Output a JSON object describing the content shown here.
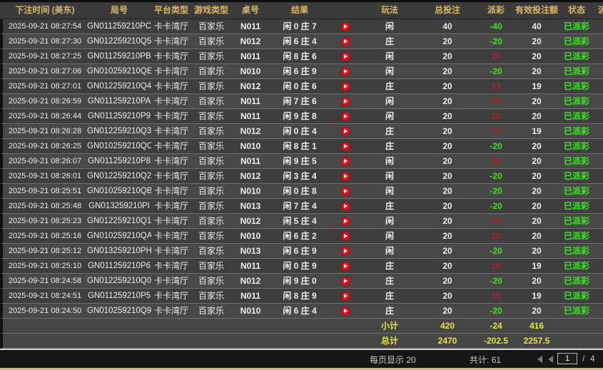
{
  "colors": {
    "gold": "#d9b869",
    "win": "#a5242e",
    "loss": "#46df28",
    "paid": "#3ee426",
    "yellow": "#e5e43c",
    "playred": "#e01318"
  },
  "table": {
    "headers": [
      "下注时间 (美东)",
      "局号",
      "平台类型",
      "游戏类型",
      "桌号",
      "结果",
      "",
      "玩法",
      "总投注",
      "派彩",
      "有效投注额",
      "状态",
      "派"
    ],
    "rows": [
      {
        "time": "2025-09-21 08:27:54",
        "round": "GN011259210PC",
        "platform": "卡卡湾厅",
        "game": "百家乐",
        "table": "N011",
        "result": "闲 0 庄 7",
        "bet": "闲",
        "total": "40",
        "payout": "-40",
        "valid": "40",
        "status": "已派彩"
      },
      {
        "time": "2025-09-21 08:27:30",
        "round": "GN012259210Q5",
        "platform": "卡卡湾厅",
        "game": "百家乐",
        "table": "N012",
        "result": "闲 6 庄 4",
        "bet": "庄",
        "total": "20",
        "payout": "-20",
        "valid": "20",
        "status": "已派彩"
      },
      {
        "time": "2025-09-21 08:27:25",
        "round": "GN011259210PB",
        "platform": "卡卡湾厅",
        "game": "百家乐",
        "table": "N011",
        "result": "闲 8 庄 6",
        "bet": "闲",
        "total": "20",
        "payout": "20",
        "valid": "20",
        "status": "已派彩"
      },
      {
        "time": "2025-09-21 08:27:06",
        "round": "GN010259210QE",
        "platform": "卡卡湾厅",
        "game": "百家乐",
        "table": "N010",
        "result": "闲 6 庄 9",
        "bet": "闲",
        "total": "20",
        "payout": "-20",
        "valid": "20",
        "status": "已派彩"
      },
      {
        "time": "2025-09-21 08:27:01",
        "round": "GN012259210Q4",
        "platform": "卡卡湾厅",
        "game": "百家乐",
        "table": "N012",
        "result": "闲 0 庄 6",
        "bet": "庄",
        "total": "20",
        "payout": "19",
        "valid": "19",
        "status": "已派彩"
      },
      {
        "time": "2025-09-21 08:26:59",
        "round": "GN011259210PA",
        "platform": "卡卡湾厅",
        "game": "百家乐",
        "table": "N011",
        "result": "闲 7 庄 6",
        "bet": "闲",
        "total": "20",
        "payout": "20",
        "valid": "20",
        "status": "已派彩"
      },
      {
        "time": "2025-09-21 08:26:44",
        "round": "GN011259210P9",
        "platform": "卡卡湾厅",
        "game": "百家乐",
        "table": "N011",
        "result": "闲 9 庄 8",
        "bet": "闲",
        "total": "20",
        "payout": "20",
        "valid": "20",
        "status": "已派彩"
      },
      {
        "time": "2025-09-21 08:26:28",
        "round": "GN012259210Q3",
        "platform": "卡卡湾厅",
        "game": "百家乐",
        "table": "N012",
        "result": "闲 0 庄 4",
        "bet": "庄",
        "total": "20",
        "payout": "19",
        "valid": "19",
        "status": "已派彩"
      },
      {
        "time": "2025-09-21 08:26:25",
        "round": "GN010259210QC",
        "platform": "卡卡湾厅",
        "game": "百家乐",
        "table": "N010",
        "result": "闲 8 庄 1",
        "bet": "庄",
        "total": "20",
        "payout": "-20",
        "valid": "20",
        "status": "已派彩"
      },
      {
        "time": "2025-09-21 08:26:07",
        "round": "GN011259210P8",
        "platform": "卡卡湾厅",
        "game": "百家乐",
        "table": "N011",
        "result": "闲 9 庄 5",
        "bet": "闲",
        "total": "20",
        "payout": "20",
        "valid": "20",
        "status": "已派彩"
      },
      {
        "time": "2025-09-21 08:26:01",
        "round": "GN012259210Q2",
        "platform": "卡卡湾厅",
        "game": "百家乐",
        "table": "N012",
        "result": "闲 3 庄 4",
        "bet": "闲",
        "total": "20",
        "payout": "-20",
        "valid": "20",
        "status": "已派彩"
      },
      {
        "time": "2025-09-21 08:25:51",
        "round": "GN010259210QB",
        "platform": "卡卡湾厅",
        "game": "百家乐",
        "table": "N010",
        "result": "闲 0 庄 8",
        "bet": "闲",
        "total": "20",
        "payout": "-20",
        "valid": "20",
        "status": "已派彩"
      },
      {
        "time": "2025-09-21 08:25:48",
        "round": "GN013259210PI",
        "platform": "卡卡湾厅",
        "game": "百家乐",
        "table": "N013",
        "result": "闲 7 庄 4",
        "bet": "庄",
        "total": "20",
        "payout": "-20",
        "valid": "20",
        "status": "已派彩"
      },
      {
        "time": "2025-09-21 08:25:23",
        "round": "GN012259210Q1",
        "platform": "卡卡湾厅",
        "game": "百家乐",
        "table": "N012",
        "result": "闲 5 庄 4",
        "bet": "闲",
        "total": "20",
        "payout": "20",
        "valid": "20",
        "status": "已派彩"
      },
      {
        "time": "2025-09-21 08:25:16",
        "round": "GN010259210QA",
        "platform": "卡卡湾厅",
        "game": "百家乐",
        "table": "N010",
        "result": "闲 6 庄 2",
        "bet": "闲",
        "total": "20",
        "payout": "20",
        "valid": "20",
        "status": "已派彩"
      },
      {
        "time": "2025-09-21 08:25:12",
        "round": "GN013259210PH",
        "platform": "卡卡湾厅",
        "game": "百家乐",
        "table": "N013",
        "result": "闲 6 庄 9",
        "bet": "闲",
        "total": "20",
        "payout": "-20",
        "valid": "20",
        "status": "已派彩"
      },
      {
        "time": "2025-09-21 08:25:10",
        "round": "GN011259210P6",
        "platform": "卡卡湾厅",
        "game": "百家乐",
        "table": "N011",
        "result": "闲 0 庄 9",
        "bet": "庄",
        "total": "20",
        "payout": "19",
        "valid": "19",
        "status": "已派彩"
      },
      {
        "time": "2025-09-21 08:24:58",
        "round": "GN012259210Q0",
        "platform": "卡卡湾厅",
        "game": "百家乐",
        "table": "N012",
        "result": "闲 9 庄 0",
        "bet": "庄",
        "total": "20",
        "payout": "-20",
        "valid": "20",
        "status": "已派彩"
      },
      {
        "time": "2025-09-21 08:24:51",
        "round": "GN011259210P5",
        "platform": "卡卡湾厅",
        "game": "百家乐",
        "table": "N011",
        "result": "闲 8 庄 9",
        "bet": "庄",
        "total": "20",
        "payout": "19",
        "valid": "19",
        "status": "已派彩"
      },
      {
        "time": "2025-09-21 08:24:50",
        "round": "GN010259210Q9",
        "platform": "卡卡湾厅",
        "game": "百家乐",
        "table": "N010",
        "result": "闲 6 庄 4",
        "bet": "庄",
        "total": "20",
        "payout": "-20",
        "valid": "20",
        "status": "已派彩"
      }
    ],
    "subtotal": {
      "label": "小计",
      "total": "420",
      "payout": "-24",
      "valid": "416"
    },
    "grand_total": {
      "label": "总计",
      "total": "2470",
      "payout": "-202.5",
      "valid": "2257.5"
    }
  },
  "footer": {
    "page_size_label": "每页显示",
    "page_size": "20",
    "count_label": "共计:",
    "count": "61",
    "current_page": "1",
    "page_separator": "/",
    "total_pages": "4"
  }
}
